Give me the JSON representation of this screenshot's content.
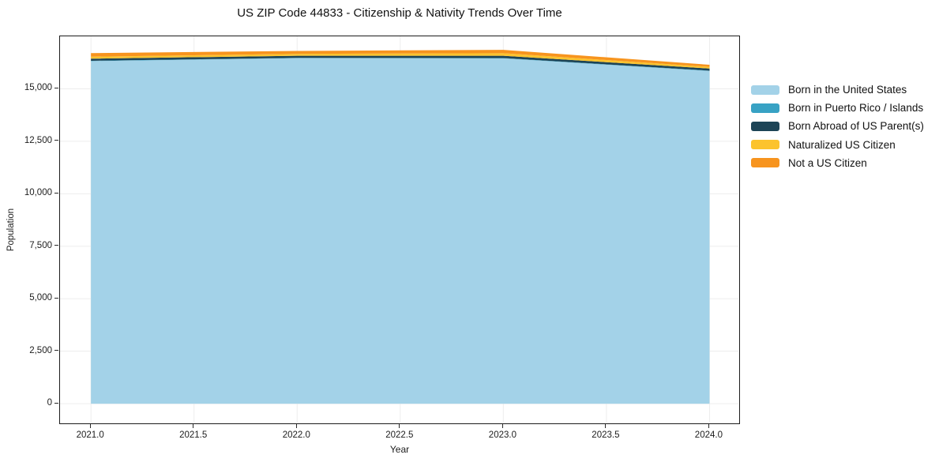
{
  "chart_data": {
    "type": "area",
    "stacked": true,
    "title": "US ZIP Code 44833 - Citizenship & Nativity Trends Over Time",
    "xlabel": "Year",
    "ylabel": "Population",
    "x": [
      2021,
      2022,
      2023,
      2024
    ],
    "series": [
      {
        "name": "Born in the United States",
        "color": "#a3d2e8",
        "values": [
          16320,
          16460,
          16450,
          15850
        ]
      },
      {
        "name": "Born in Puerto Rico / Islands",
        "color": "#38a2c4",
        "values": [
          15,
          15,
          15,
          15
        ]
      },
      {
        "name": "Born Abroad of US Parent(s)",
        "color": "#1d4456",
        "values": [
          100,
          100,
          110,
          100
        ]
      },
      {
        "name": "Naturalized US Citizen",
        "color": "#fcc32d",
        "values": [
          95,
          90,
          120,
          80
        ]
      },
      {
        "name": "Not a US Citizen",
        "color": "#f7941e",
        "values": [
          170,
          140,
          160,
          100
        ]
      }
    ],
    "xlim": [
      2020.85,
      2024.14
    ],
    "ylim": [
      -900,
      17500
    ],
    "xticks": {
      "values": [
        2021,
        2021.5,
        2022,
        2022.5,
        2023,
        2023.5,
        2024
      ],
      "labels": [
        "2021.0",
        "2021.5",
        "2022.0",
        "2022.5",
        "2023.0",
        "2023.5",
        "2024.0"
      ]
    },
    "yticks": {
      "values": [
        0,
        2500,
        5000,
        7500,
        10000,
        12500,
        15000
      ],
      "labels": [
        "0",
        "2,500",
        "5,000",
        "7,500",
        "10,000",
        "12,500",
        "15,000"
      ]
    },
    "grid": true,
    "grid_color": "#ededed",
    "legend_position": "right-outside"
  }
}
